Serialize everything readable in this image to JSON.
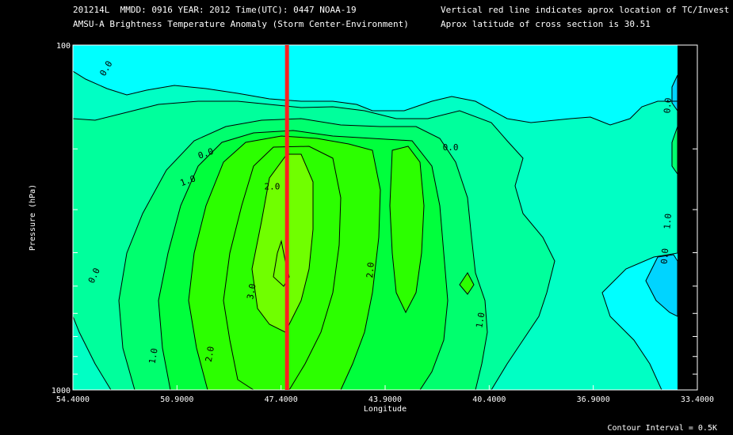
{
  "header": {
    "line1_left": "201214L  MMDD: 0916 YEAR: 2012 Time(UTC): 0447 NOAA-19",
    "line2_left": "AMSU-A Brightness Temperature Anomaly (Storm Center-Environment)",
    "line1_right": "Vertical red line indicates aprox location of TC/Invest",
    "line2_right": "Aprox latitude of cross section is 30.51"
  },
  "footer": {
    "contour_interval": "Contour Interval = 0.5K"
  },
  "colors": {
    "background": "#000000",
    "cyan": "#00ffff",
    "light_blue": "#00d4ff",
    "aqua_green": "#00ffc4",
    "mint": "#00ff9c",
    "spring": "#00ff6e",
    "green": "#00ff3c",
    "bright_green": "#2cff00",
    "lime": "#70ff00",
    "tc_line": "#ff2020",
    "contour_line": "#000000"
  },
  "chart_data": {
    "type": "contour",
    "title": "AMSU-A Brightness Temperature Anomaly (Storm Center-Environment)",
    "xlabel": "Longitude",
    "ylabel": "Pressure (hPa)",
    "x_axis": {
      "reversed": true,
      "range": [
        54.4,
        33.4
      ],
      "tick_labels": [
        "54.4000",
        "50.9000",
        "47.4000",
        "43.9000",
        "40.4000",
        "36.9000",
        "33.4000"
      ],
      "tick_values": [
        54.4,
        50.9,
        47.4,
        43.9,
        40.4,
        36.9,
        33.4
      ]
    },
    "y_axis": {
      "scale": "log",
      "range": [
        1000,
        100
      ],
      "tick_labels": [
        "100",
        "1000"
      ],
      "tick_values": [
        100,
        1000
      ],
      "minor_ticks": [
        200,
        300,
        400,
        500,
        600,
        700,
        800,
        900
      ]
    },
    "tc_longitude": 47.2,
    "cross_section_latitude": 30.51,
    "contour_interval_K": 0.5,
    "contour_labels": [
      {
        "text": "0.0",
        "lon": 53.2,
        "p": 118,
        "rotate": -60
      },
      {
        "text": "0.0",
        "lon": 49.9,
        "p": 210,
        "rotate": -20
      },
      {
        "text": "1.0",
        "lon": 50.5,
        "p": 252,
        "rotate": -20
      },
      {
        "text": "2.0",
        "lon": 47.7,
        "p": 262,
        "rotate": 0
      },
      {
        "text": "0.0",
        "lon": 41.7,
        "p": 202,
        "rotate": 0
      },
      {
        "text": "0.0",
        "lon": 34.3,
        "p": 150,
        "rotate": -85
      },
      {
        "text": "1.0",
        "lon": 34.3,
        "p": 325,
        "rotate": -85
      },
      {
        "text": "0.0",
        "lon": 34.4,
        "p": 410,
        "rotate": -85
      },
      {
        "text": "0.0",
        "lon": 53.6,
        "p": 470,
        "rotate": -65
      },
      {
        "text": "3.0",
        "lon": 48.3,
        "p": 520,
        "rotate": -80
      },
      {
        "text": "2.0",
        "lon": 44.3,
        "p": 450,
        "rotate": -85
      },
      {
        "text": "1.0",
        "lon": 40.6,
        "p": 630,
        "rotate": -80
      },
      {
        "text": "1.0",
        "lon": 51.6,
        "p": 800,
        "rotate": -80
      },
      {
        "text": "2.0",
        "lon": 49.7,
        "p": 790,
        "rotate": -80
      }
    ]
  }
}
